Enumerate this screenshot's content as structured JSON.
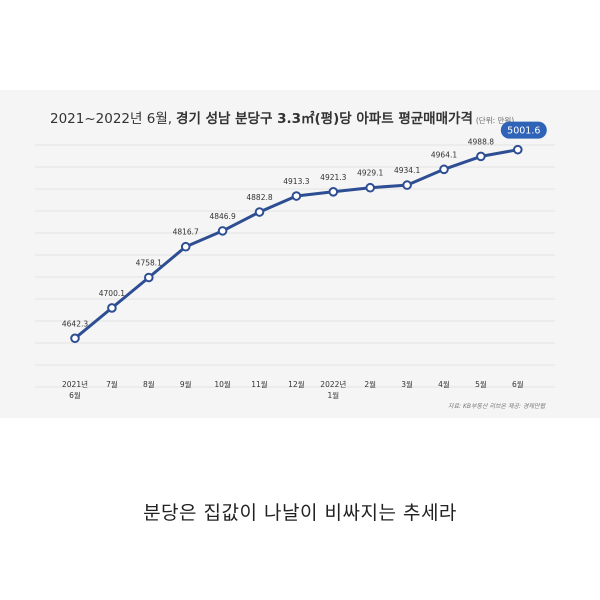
{
  "chart_data": {
    "type": "line",
    "title": "2021~2022년 6월, 경기 성남 분당구 3.3㎡(평)당 아파트 평균매매가격",
    "title_date": "2021~2022년 6월,",
    "title_main": "경기 성남 분당구 3.3㎡(평)당 아파트 평균매매가격",
    "unit": "(단위: 만원)",
    "source": "자료: KB부동산 리브온 제공: 경제만랩",
    "categories": [
      [
        "2021년",
        "6월"
      ],
      [
        "7월"
      ],
      [
        "8월"
      ],
      [
        "9월"
      ],
      [
        "10월"
      ],
      [
        "11월"
      ],
      [
        "12월"
      ],
      [
        "2022년",
        "1월"
      ],
      [
        "2월"
      ],
      [
        "3월"
      ],
      [
        "4월"
      ],
      [
        "5월"
      ],
      [
        "6월"
      ]
    ],
    "values": [
      4642.3,
      4700.1,
      4758.1,
      4816.7,
      4846.9,
      4882.8,
      4913.3,
      4921.3,
      4929.1,
      4934.1,
      4964.1,
      4988.8,
      5001.6
    ],
    "value_labels": [
      "4642.3",
      "4700.1",
      "4758.1",
      "4816.7",
      "4846.9",
      "4882.8",
      "4913.3",
      "4921.3",
      "4929.1",
      "4934.1",
      "4964.1",
      "4988.8",
      "5001.6"
    ],
    "highlight_index": 12,
    "ylim": [
      4620,
      5020
    ],
    "grid": true,
    "line_color": "#2e4e94",
    "highlight_color": "#2e63b8"
  },
  "caption": "분당은 집값이 나날이 비싸지는 추세라"
}
